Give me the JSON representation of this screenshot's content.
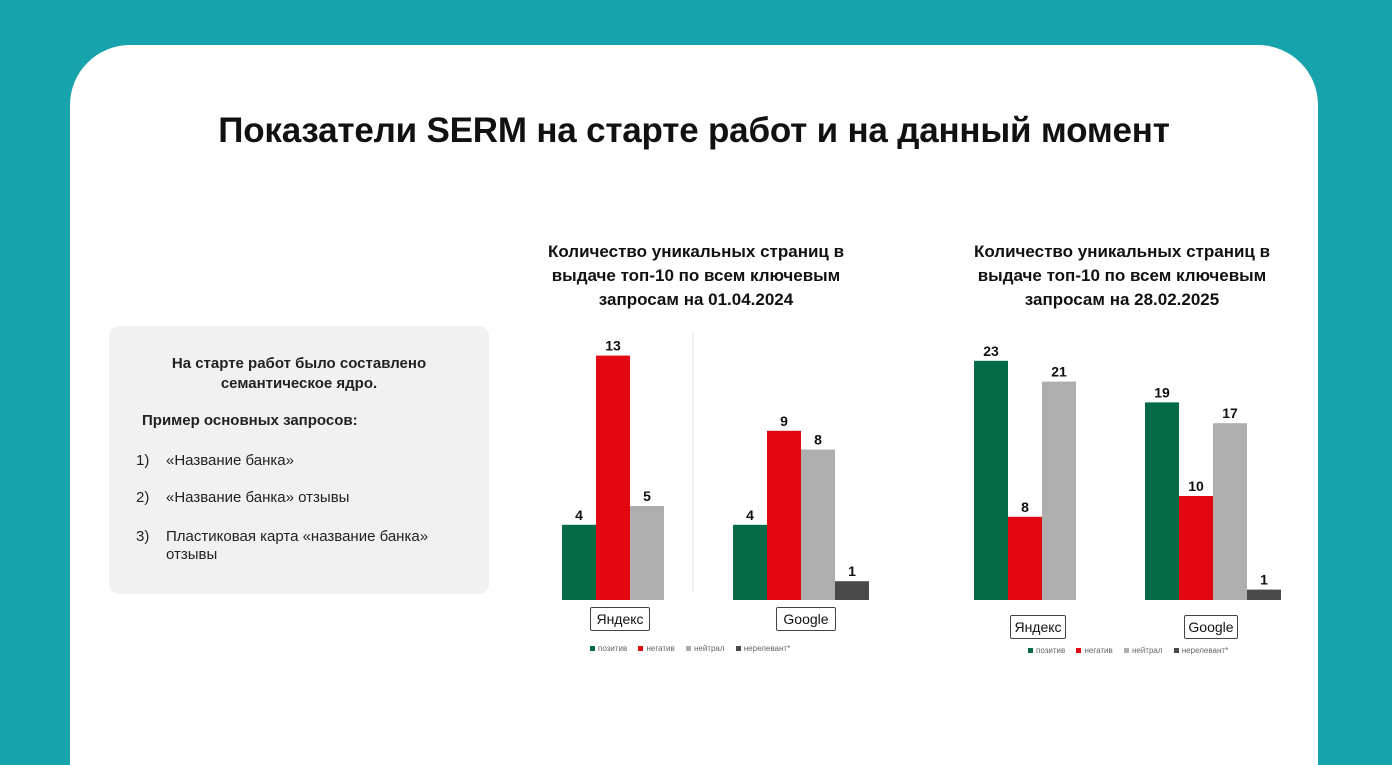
{
  "title": "Показатели SERM на старте работ и на данный момент",
  "info": {
    "intro_line1": "На старте работ было составлено",
    "intro_line2": "семантическое ядро.",
    "example_heading": "Пример основных запросов:",
    "queries": [
      {
        "num": "1)",
        "text": "«Название банка»"
      },
      {
        "num": "2)",
        "text": "«Название банка» отзывы"
      },
      {
        "num": "3)",
        "text": "Пластиковая карта «название банка» отзывы"
      }
    ]
  },
  "colors": {
    "background": "#16a3ab",
    "positive": "#046b46",
    "negative": "#e30613",
    "neutral": "#aeaeae",
    "irrelevant": "#4a4a4a"
  },
  "legend": [
    "позитив",
    "негатив",
    "нейтрал",
    "нерелевант*"
  ],
  "chart_data": [
    {
      "type": "bar",
      "title_lines": [
        "Количество уникальных страниц в",
        "выдаче топ-10 по всем ключевым",
        "запросам на 01.04.2024"
      ],
      "groups": [
        "Яндекс",
        "Google"
      ],
      "series": [
        {
          "name": "позитив",
          "values": [
            4,
            4
          ]
        },
        {
          "name": "негатив",
          "values": [
            13,
            9
          ]
        },
        {
          "name": "нейтрал",
          "values": [
            5,
            8
          ]
        },
        {
          "name": "нерелевант*",
          "values": [
            null,
            1
          ]
        }
      ]
    },
    {
      "type": "bar",
      "title_lines": [
        "Количество уникальных страниц в",
        "выдаче топ-10 по всем ключевым",
        "запросам на 28.02.2025"
      ],
      "groups": [
        "Яндекс",
        "Google"
      ],
      "series": [
        {
          "name": "позитив",
          "values": [
            23,
            19
          ]
        },
        {
          "name": "негатив",
          "values": [
            8,
            10
          ]
        },
        {
          "name": "нейтрал",
          "values": [
            21,
            17
          ]
        },
        {
          "name": "нерелевант*",
          "values": [
            null,
            1
          ]
        }
      ]
    }
  ]
}
